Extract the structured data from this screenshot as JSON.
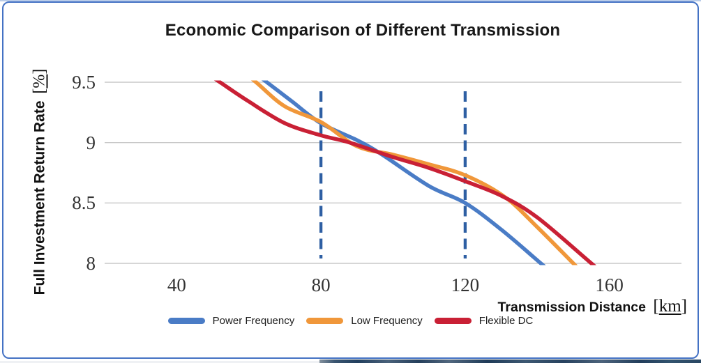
{
  "window": {
    "background": "#FFFFFF",
    "frame_border_color": "#4472C4",
    "top_hairline_color": "#B9CCE9"
  },
  "chart_data": {
    "type": "line",
    "title": "Economic Comparison of Different Transmission",
    "x_axis": {
      "label": "Transmission Distance",
      "unit": "km",
      "bracket_open": "[",
      "bracket_close": "]",
      "tick_values": [
        40,
        80,
        120,
        160
      ],
      "range": [
        20,
        180
      ]
    },
    "y_axis": {
      "label": "Full Investment Return Rate",
      "unit": "%",
      "bracket_open": "[",
      "bracket_close": "]",
      "tick_values": [
        9.5,
        9,
        8.5,
        8
      ],
      "range": [
        8,
        9.5
      ]
    },
    "grid": {
      "horizontal": true,
      "color": "#C8C8C8"
    },
    "reference_lines": {
      "axis": "x",
      "values": [
        80,
        120
      ],
      "style": "dashed",
      "color": "#2E5FA3"
    },
    "legend": {
      "position": "bottom"
    },
    "series": [
      {
        "name": "Power Frequency",
        "color": "#4A7CC6",
        "points": [
          [
            65,
            9.5
          ],
          [
            72,
            9.34
          ],
          [
            80,
            9.16
          ],
          [
            90,
            9.02
          ],
          [
            97,
            8.9
          ],
          [
            110,
            8.64
          ],
          [
            120,
            8.5
          ],
          [
            130,
            8.28
          ],
          [
            141,
            8.0
          ]
        ]
      },
      {
        "name": "Low Frequency",
        "color": "#F0973A",
        "points": [
          [
            62,
            9.5
          ],
          [
            70,
            9.3
          ],
          [
            80,
            9.17
          ],
          [
            90,
            8.97
          ],
          [
            100,
            8.9
          ],
          [
            110,
            8.82
          ],
          [
            120,
            8.73
          ],
          [
            131,
            8.55
          ],
          [
            140,
            8.3
          ],
          [
            150,
            8.0
          ]
        ]
      },
      {
        "name": "Flexible DC",
        "color": "#C92035",
        "points": [
          [
            52,
            9.5
          ],
          [
            60,
            9.34
          ],
          [
            70,
            9.16
          ],
          [
            80,
            9.06
          ],
          [
            88,
            9.0
          ],
          [
            100,
            8.88
          ],
          [
            110,
            8.79
          ],
          [
            120,
            8.68
          ],
          [
            130,
            8.56
          ],
          [
            140,
            8.38
          ],
          [
            155,
            8.0
          ]
        ]
      }
    ]
  }
}
